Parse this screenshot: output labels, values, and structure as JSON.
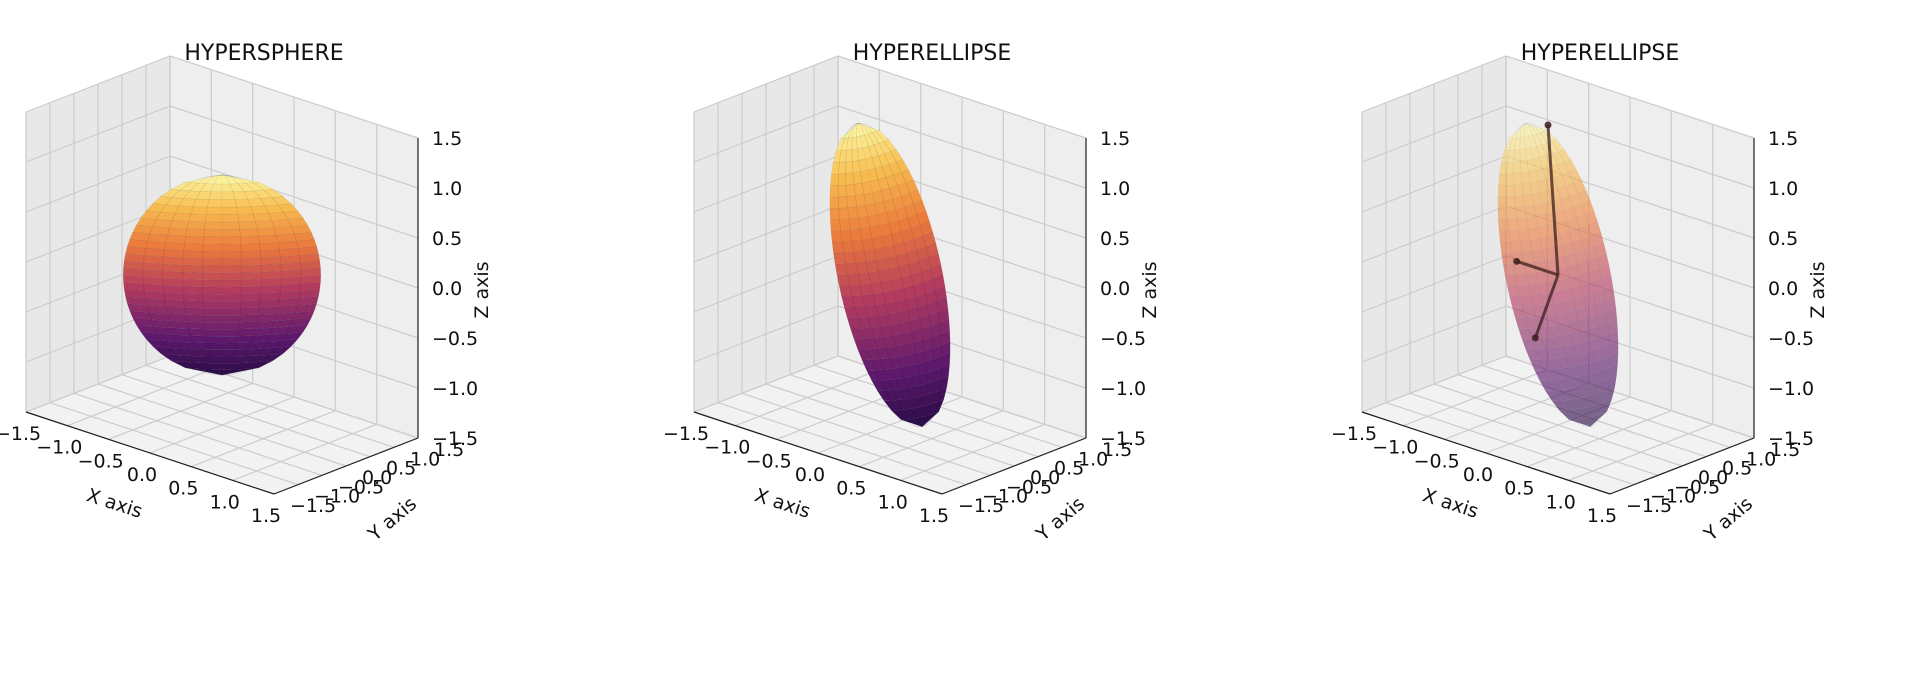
{
  "figure": {
    "background": "#ffffff",
    "pane_color": "#eeeeee",
    "grid_color": "#cccccc",
    "colormap": "inferno-light"
  },
  "chart_data": [
    {
      "type": "surface3d",
      "title": "HYPERSPHERE",
      "xlabel": "X axis",
      "ylabel": "Y axis",
      "zlabel": "Z axis",
      "xlim": [
        -1.5,
        1.5
      ],
      "ylim": [
        -1.5,
        1.5
      ],
      "zlim": [
        -1.5,
        1.5
      ],
      "xticks": [
        "−1.5",
        "−1.0",
        "−0.5",
        "0.0",
        "0.5",
        "1.0",
        "1.5"
      ],
      "yticks": [
        "−1.5",
        "−1.0",
        "−0.5",
        "0.0",
        "0.5",
        "1.0",
        "1.5"
      ],
      "zticks": [
        "−1.5",
        "−1.0",
        "−0.5",
        "0.0",
        "0.5",
        "1.0",
        "1.5"
      ],
      "grid": true,
      "surface": {
        "shape": "ellipsoid",
        "radii": [
          1,
          1,
          1
        ],
        "tilt_deg": 0,
        "opacity": 1
      },
      "axes_segments": []
    },
    {
      "type": "surface3d",
      "title": "HYPERELLIPSE",
      "xlabel": "X axis",
      "ylabel": "Y axis",
      "zlabel": "Z axis",
      "xlim": [
        -1.5,
        1.5
      ],
      "ylim": [
        -1.5,
        1.5
      ],
      "zlim": [
        -1.5,
        1.5
      ],
      "xticks": [
        "−1.5",
        "−1.0",
        "−0.5",
        "0.0",
        "0.5",
        "1.0",
        "1.5"
      ],
      "yticks": [
        "−1.5",
        "−1.0",
        "−0.5",
        "0.0",
        "0.5",
        "1.0",
        "1.5"
      ],
      "zticks": [
        "−1.5",
        "−1.0",
        "−0.5",
        "0.0",
        "0.5",
        "1.0",
        "1.5"
      ],
      "grid": true,
      "surface": {
        "shape": "ellipsoid",
        "radii": [
          0.55,
          0.35,
          1.55
        ],
        "tilt_deg": 12,
        "opacity": 1
      },
      "axes_segments": []
    },
    {
      "type": "surface3d",
      "title": "HYPERELLIPSE",
      "xlabel": "X axis",
      "ylabel": "Y axis",
      "zlabel": "Z axis",
      "xlim": [
        -1.5,
        1.5
      ],
      "ylim": [
        -1.5,
        1.5
      ],
      "zlim": [
        -1.5,
        1.5
      ],
      "xticks": [
        "−1.5",
        "−1.0",
        "−0.5",
        "0.0",
        "0.5",
        "1.0",
        "1.5"
      ],
      "yticks": [
        "−1.5",
        "−1.0",
        "−0.5",
        "0.0",
        "0.5",
        "1.0",
        "1.5"
      ],
      "zticks": [
        "−1.5",
        "−1.0",
        "−0.5",
        "0.0",
        "0.5",
        "1.0",
        "1.5"
      ],
      "grid": true,
      "surface": {
        "shape": "ellipsoid",
        "radii": [
          0.55,
          0.35,
          1.55
        ],
        "tilt_deg": 12,
        "opacity": 0.62
      },
      "axes_segments": [
        {
          "from": [
            0,
            0,
            0
          ],
          "to": [
            -0.15,
            0.05,
            1.45
          ]
        },
        {
          "from": [
            0,
            0,
            0
          ],
          "to": [
            -0.5,
            0,
            0
          ]
        },
        {
          "from": [
            0,
            0,
            0
          ],
          "to": [
            -0.1,
            -0.3,
            -0.6
          ]
        }
      ]
    }
  ]
}
